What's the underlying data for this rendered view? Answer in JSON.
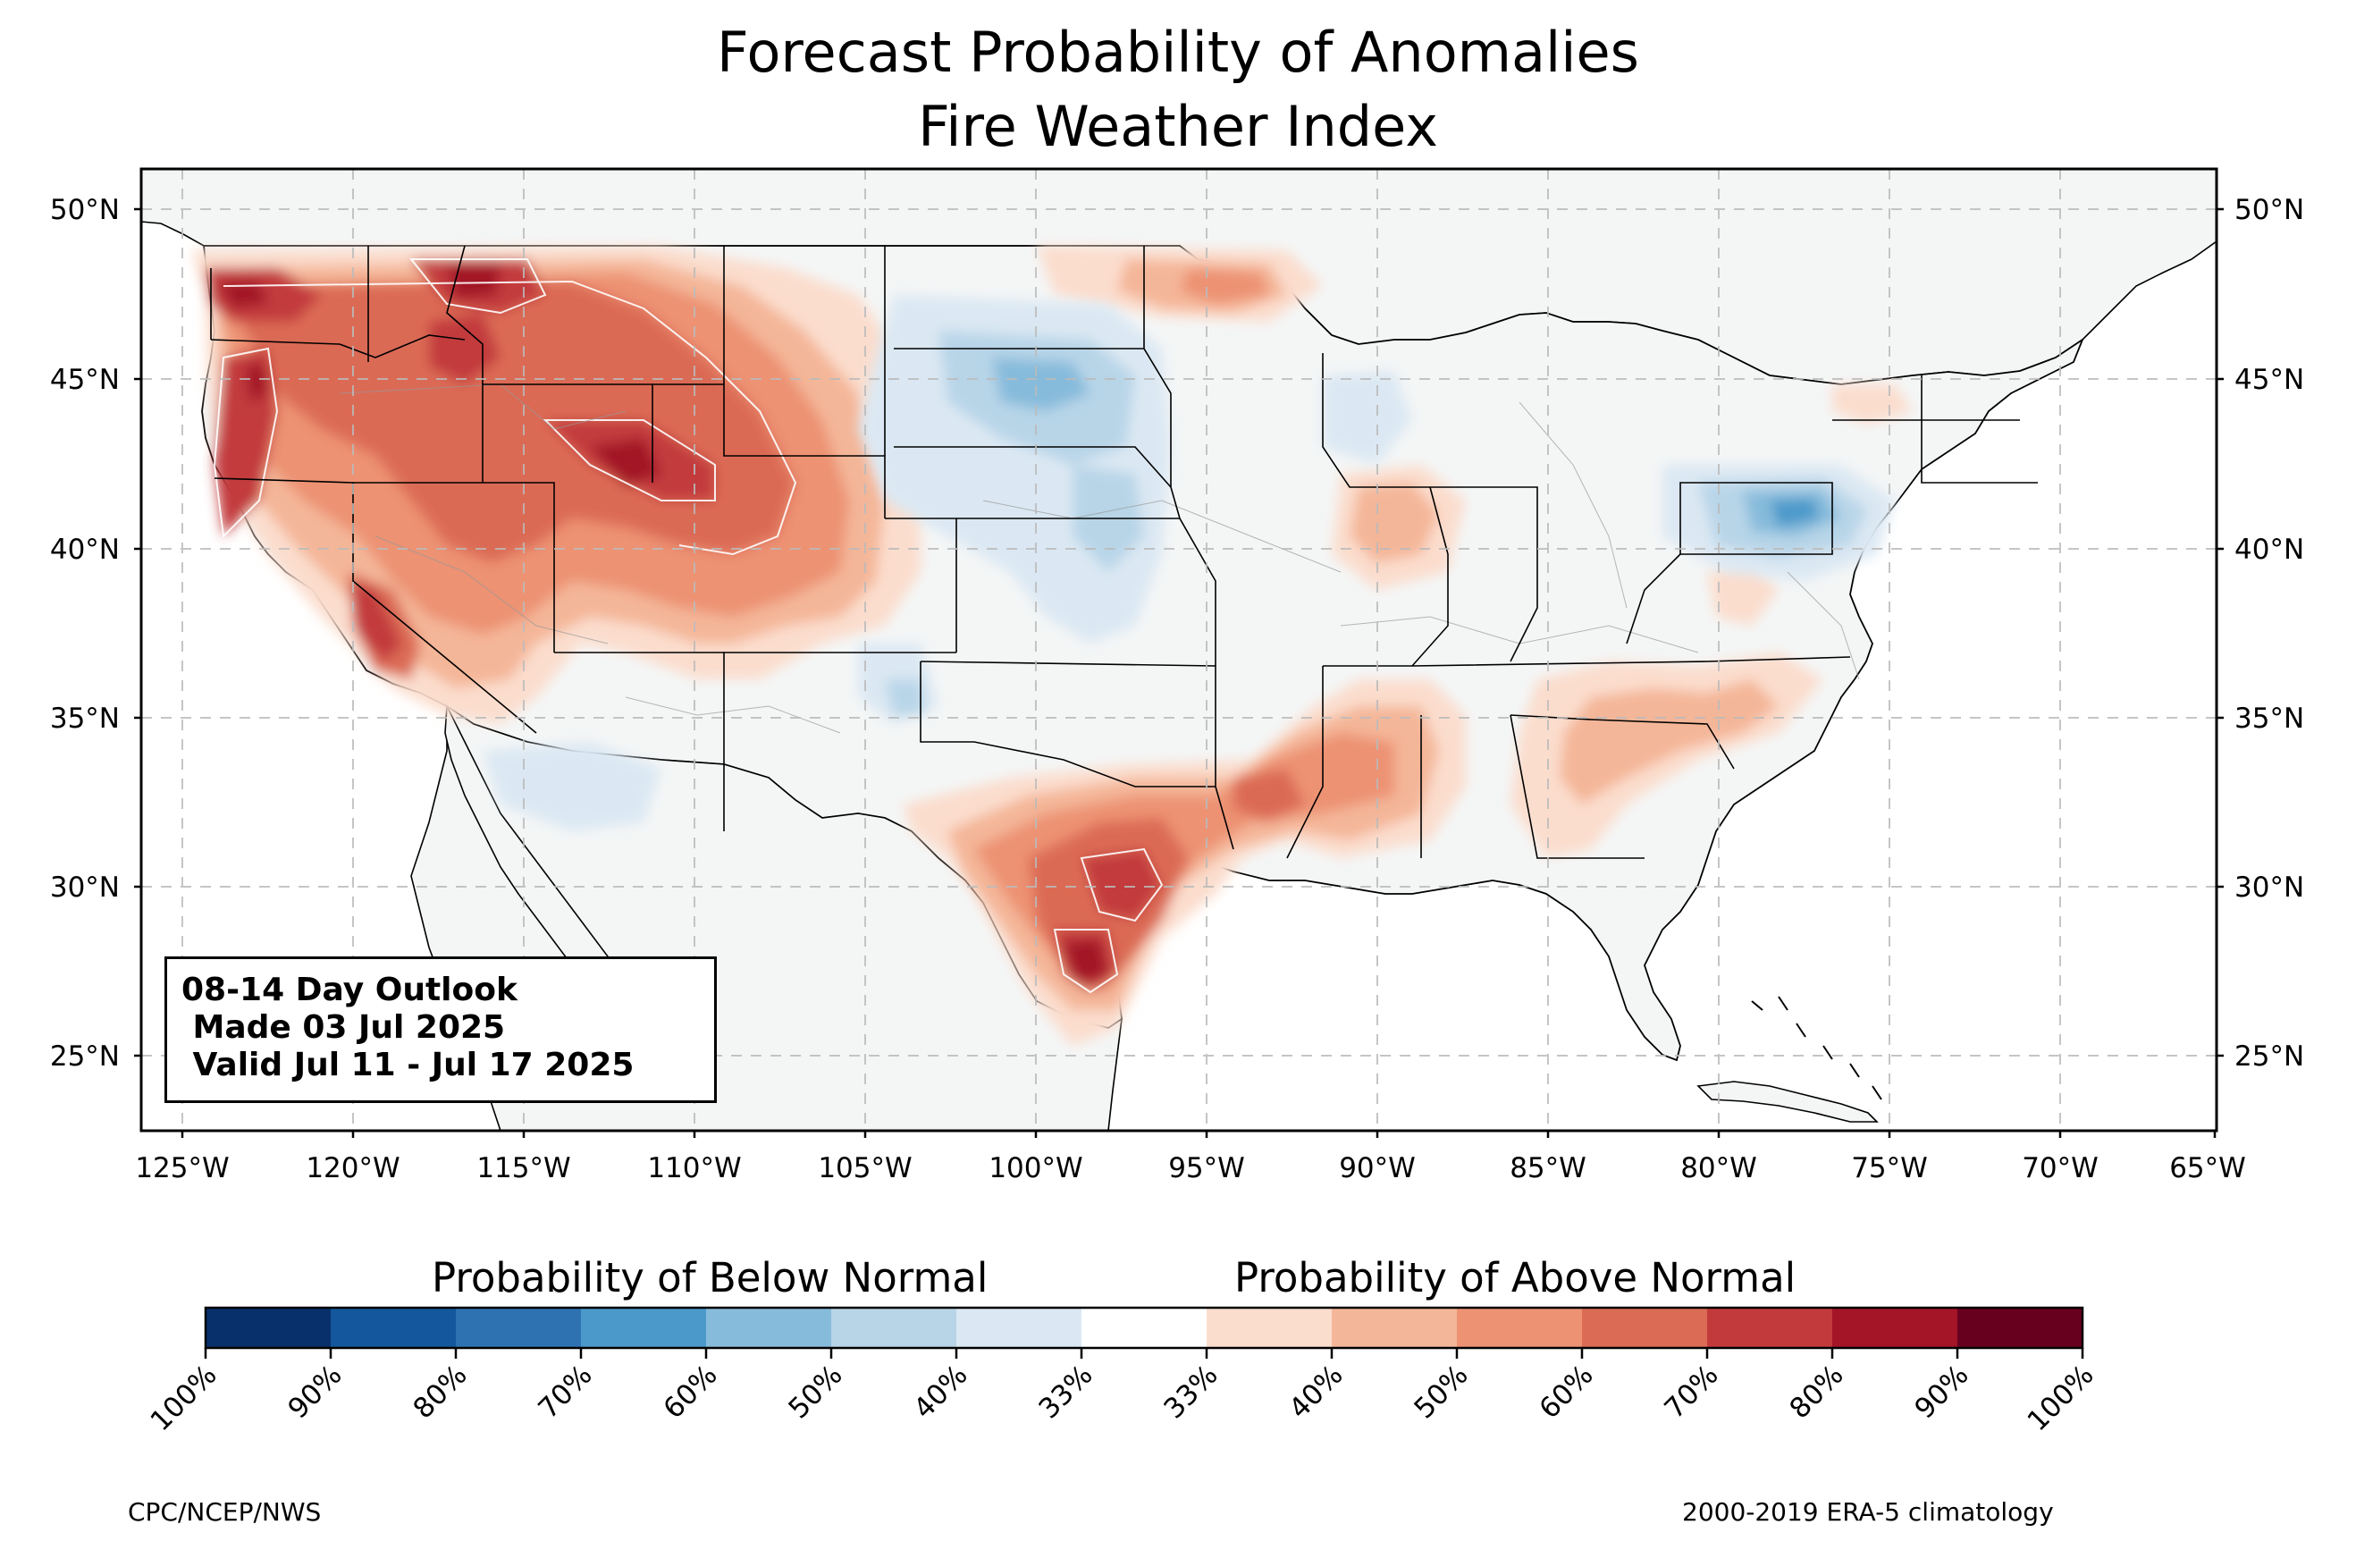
{
  "title": {
    "line1": "Forecast Probability of Anomalies",
    "line2": "Fire Weather Index"
  },
  "map": {
    "lat_labels": [
      "50°N",
      "45°N",
      "40°N",
      "35°N",
      "30°N",
      "25°N"
    ],
    "lon_labels": [
      "125°W",
      "120°W",
      "115°W",
      "110°W",
      "105°W",
      "100°W",
      "95°W",
      "90°W",
      "85°W",
      "80°W",
      "75°W",
      "70°W",
      "65°W"
    ],
    "extent": {
      "lon": [
        -126.2,
        -64.9
      ],
      "lat": [
        22.8,
        51.2
      ]
    },
    "gridlines": true,
    "land_color": "#f4f6f6",
    "above_normal_regions": [
      {
        "name": "Pacific Northwest / Northern Rockies",
        "level": "70%"
      },
      {
        "name": "Great Basin / Central Rockies",
        "level": "70%"
      },
      {
        "name": "South Texas",
        "level": "80%"
      },
      {
        "name": "Lower Mississippi Valley",
        "level": "50%"
      },
      {
        "name": "Southeast",
        "level": "40%"
      }
    ],
    "below_normal_regions": [
      {
        "name": "Northern Plains",
        "level": "50%"
      },
      {
        "name": "Central Plains",
        "level": "50%"
      },
      {
        "name": "Mid-Atlantic / Pennsylvania",
        "level": "60%"
      },
      {
        "name": "Upper Midwest",
        "level": "40%"
      }
    ]
  },
  "info_box": {
    "text": "08-14 Day Outlook\n Made 03 Jul 2025\n Valid Jul 11 - Jul 17 2025"
  },
  "colorbar": {
    "below_label": "Probability of Below Normal",
    "above_label": "Probability of Above Normal",
    "tick_labels": [
      "100%",
      "90%",
      "80%",
      "70%",
      "60%",
      "50%",
      "40%",
      "33%",
      "33%",
      "40%",
      "50%",
      "60%",
      "70%",
      "80%",
      "90%",
      "100%"
    ],
    "colors": [
      "#08306b",
      "#14579c",
      "#2f72b2",
      "#4b99ca",
      "#87bbdb",
      "#b8d5e8",
      "#dbe8f3",
      "#ffffff",
      "#fbddcd",
      "#f4b698",
      "#ed9273",
      "#db6b55",
      "#c33a3c",
      "#a31527",
      "#67001f"
    ]
  },
  "footer": {
    "left": "CPC/NCEP/NWS",
    "right": "2000-2019 ERA-5 climatology"
  }
}
